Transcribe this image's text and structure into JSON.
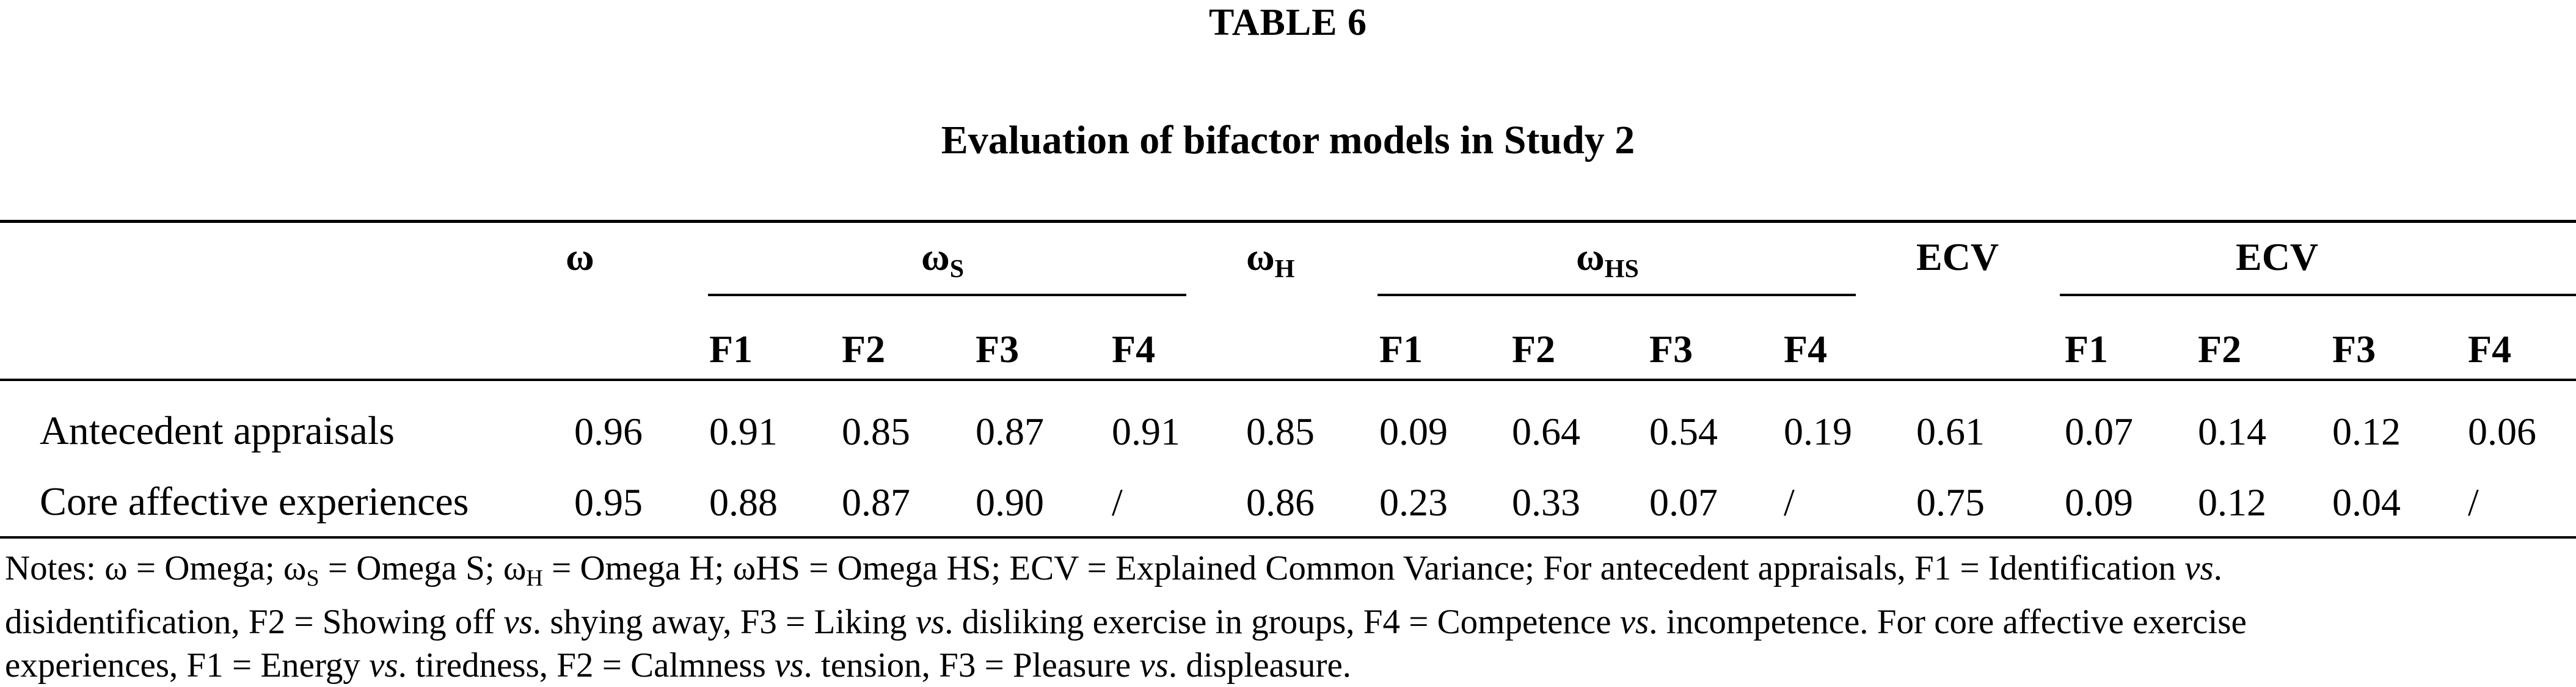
{
  "table": {
    "number": "TABLE 6",
    "title": "Evaluation of bifactor models in Study 2",
    "header": {
      "omega": "ω",
      "omega_s_base": "ω",
      "omega_s_sub": "S",
      "omega_h_base": "ω",
      "omega_h_sub": "H",
      "omega_hs_base": "ω",
      "omega_hs_sub": "HS",
      "ecv": "ECV",
      "ecv_group": "ECV",
      "factors": [
        "F1",
        "F2",
        "F3",
        "F4"
      ]
    },
    "rows": [
      {
        "label": "Antecedent appraisals",
        "values": [
          "0.96",
          "0.91",
          "0.85",
          "0.87",
          "0.91",
          "0.85",
          "0.09",
          "0.64",
          "0.54",
          "0.19",
          "0.61",
          "0.07",
          "0.14",
          "0.12",
          "0.06"
        ]
      },
      {
        "label": "Core affective experiences",
        "values": [
          "0.95",
          "0.88",
          "0.87",
          "0.90",
          "/",
          "0.86",
          "0.23",
          "0.33",
          "0.07",
          "/",
          "0.75",
          "0.09",
          "0.12",
          "0.04",
          "/"
        ]
      }
    ],
    "notes": {
      "n1": "Notes: ω = Omega; ω",
      "n1_sub_s": "S",
      "n2": " = Omega S; ω",
      "n2_sub_h": "H",
      "n3": " = Omega H; ωHS = Omega HS; ECV = Explained Common Variance; For antecedent appraisals, F1 = Identification ",
      "vs": "vs",
      "line2_a": "disidentification, F2 = Showing off ",
      "line2_b": ". shying away, F3 = Liking ",
      "line2_c": ". disliking exercise in groups, F4 = Competence ",
      "line2_d": ". incompetence. For core affective exercise",
      "line3_a": "experiences, F1 = Energy ",
      "line3_b": ". tiredness, F2 = Calmness ",
      "line3_c": ". tension, F3 = Pleasure ",
      "line3_d": ". displeasure."
    }
  }
}
